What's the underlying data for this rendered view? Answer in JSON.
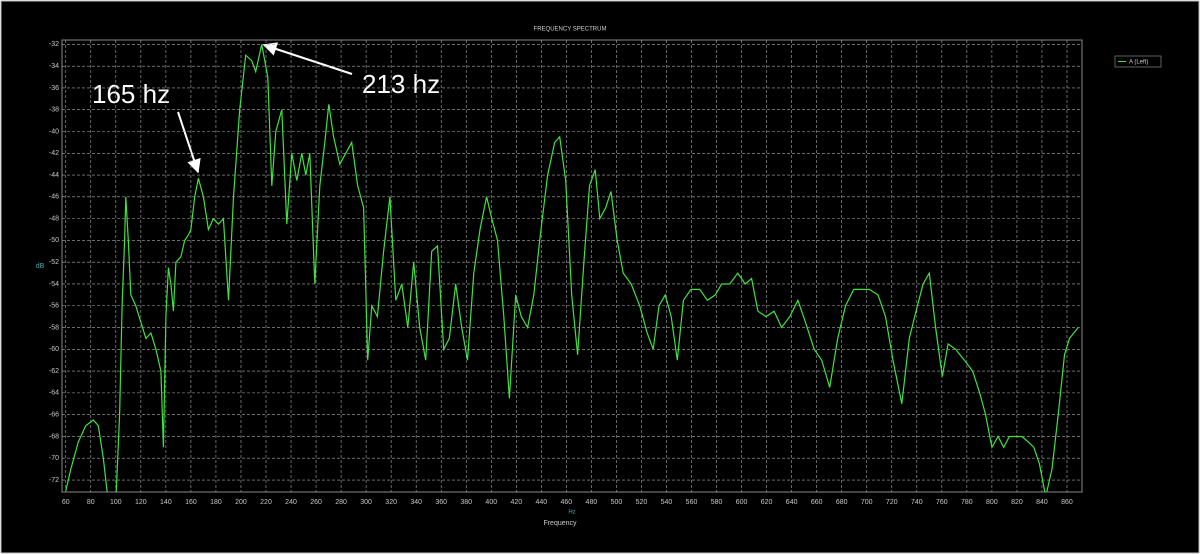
{
  "chart_data": {
    "type": "line",
    "title": "FREQUENCY SPECTRUM",
    "x_label": "Hz",
    "x_title": "Frequency",
    "y_label": "dB",
    "annotations": [
      "165 hz",
      "213 hz"
    ],
    "xlim": [
      57,
      872
    ],
    "ylim": [
      -73.1,
      -31.6
    ],
    "xticks": [
      60,
      80,
      100,
      120,
      140,
      160,
      180,
      200,
      220,
      240,
      260,
      280,
      300,
      320,
      340,
      360,
      380,
      400,
      420,
      440,
      460,
      480,
      500,
      520,
      540,
      560,
      580,
      600,
      620,
      640,
      660,
      680,
      700,
      720,
      740,
      760,
      780,
      800,
      820,
      840,
      860
    ],
    "yticks": [
      -32,
      -34,
      -36,
      -38,
      -40,
      -42,
      -44,
      -46,
      -48,
      -50,
      -52,
      -54,
      -56,
      -58,
      -60,
      -62,
      -64,
      -66,
      -68,
      -70,
      -72
    ],
    "grid": true,
    "legend": "top-right",
    "x": [
      60,
      64,
      70,
      76,
      82,
      86,
      90,
      94,
      100,
      103,
      105,
      107,
      108,
      110,
      112,
      116,
      120,
      124,
      128,
      132,
      136,
      138,
      140,
      142,
      144,
      146,
      148,
      152,
      155,
      158,
      160,
      163,
      166,
      170,
      174,
      178,
      182,
      186,
      190,
      194,
      199,
      203.8,
      208.6,
      211.8,
      216.6,
      221.4,
      224.6,
      227.8,
      232.6,
      236.6,
      240.6,
      244.6,
      248.6,
      251.8,
      255,
      259,
      263,
      267,
      270.2,
      274,
      279,
      283.7,
      288.5,
      293.3,
      298,
      301.3,
      304.5,
      309,
      314,
      319,
      323.7,
      328.5,
      333.3,
      338,
      342.8,
      347.6,
      352.4,
      357,
      362,
      366.5,
      371.6,
      376.4,
      381,
      386,
      391,
      396.3,
      400.4,
      405,
      410,
      414.5,
      419.5,
      424,
      429,
      434,
      438.7,
      445,
      450.7,
      454.7,
      459.5,
      464.3,
      469,
      474,
      478.5,
      483,
      486.7,
      491.4,
      495.7,
      500.6,
      505.4,
      511.8,
      518.6,
      524.6,
      529.4,
      534,
      539,
      543.8,
      548.6,
      553.5,
      559.6,
      566.5,
      572.7,
      579,
      584,
      590.5,
      597,
      603,
      608,
      613,
      619.5,
      626,
      632,
      638.5,
      645,
      651,
      658,
      664,
      670.4,
      676.8,
      683,
      689.6,
      696,
      702,
      709,
      715,
      721,
      728,
      734,
      740.5,
      745,
      750,
      755,
      760.4,
      765,
      771,
      778,
      784.6,
      790.3,
      795,
      800,
      805,
      809.4,
      814,
      819,
      824,
      829,
      833.5,
      838,
      843,
      848,
      853,
      858,
      862,
      869
    ],
    "series": [
      {
        "name": "A (Left)",
        "color": "#3fe23f",
        "values": [
          -73,
          -71,
          -68.5,
          -67,
          -66.5,
          -67,
          -70,
          -74,
          -74,
          -66,
          -56,
          -50,
          -46,
          -50,
          -55,
          -56,
          -57.5,
          -59,
          -58.5,
          -60,
          -62,
          -69,
          -57,
          -52.5,
          -54,
          -56.5,
          -52,
          -51.5,
          -50,
          -49.5,
          -49,
          -46,
          -44.3,
          -46,
          -49,
          -48,
          -48.5,
          -48,
          -55.5,
          -46,
          -38,
          -33,
          -33.5,
          -34.5,
          -32,
          -35,
          -45,
          -40,
          -38,
          -48.5,
          -42,
          -44.5,
          -42,
          -44,
          -42,
          -54,
          -45,
          -41,
          -37.5,
          -40.5,
          -43,
          -42,
          -41,
          -45,
          -47,
          -61,
          -56,
          -57,
          -51,
          -46,
          -55.5,
          -54,
          -58,
          -52,
          -58,
          -61,
          -51,
          -50.5,
          -60,
          -59,
          -54,
          -58,
          -61,
          -53,
          -49,
          -46,
          -48,
          -50,
          -57,
          -64.5,
          -55,
          -57,
          -58,
          -55,
          -50,
          -44,
          -41,
          -40.5,
          -44.5,
          -55,
          -60.5,
          -52,
          -45,
          -43.5,
          -48,
          -47,
          -45.5,
          -50,
          -53,
          -54,
          -56,
          -58.5,
          -60,
          -56,
          -55,
          -57,
          -61,
          -55.5,
          -54.5,
          -54.5,
          -55.5,
          -55,
          -54,
          -54,
          -53,
          -54,
          -53.5,
          -56.5,
          -57,
          -56.5,
          -58,
          -57,
          -55.5,
          -57.5,
          -60,
          -61,
          -63.5,
          -59,
          -56,
          -54.5,
          -54.5,
          -54.5,
          -55,
          -57,
          -61,
          -65,
          -59,
          -56,
          -54,
          -53,
          -58,
          -62.5,
          -59.5,
          -60,
          -61,
          -62,
          -64,
          -66,
          -69,
          -68,
          -69,
          -68,
          -68,
          -68,
          -68.5,
          -69,
          -70.5,
          -73.5,
          -71,
          -66,
          -60.5,
          -59,
          -58
        ]
      }
    ]
  }
}
